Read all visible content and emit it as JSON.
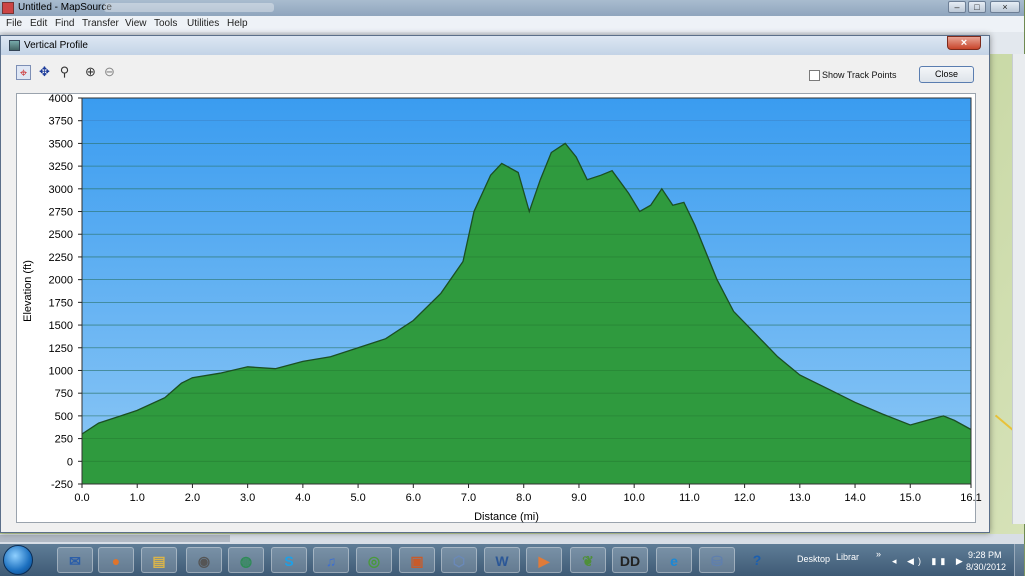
{
  "app": {
    "title": "Untitled - MapSource",
    "menu": [
      "File",
      "Edit",
      "Find",
      "Transfer",
      "View",
      "Tools",
      "Utilities",
      "Help"
    ],
    "window_buttons": [
      "–",
      "□",
      "×"
    ]
  },
  "dialog": {
    "title": "Vertical Profile",
    "close_x": "×",
    "show_track_points_label": "Show Track Points",
    "show_track_points_checked": false,
    "close_button": "Close",
    "tools": [
      {
        "name": "select-icon",
        "glyph": "⌖"
      },
      {
        "name": "pan-icon",
        "glyph": "✥"
      },
      {
        "name": "zoom-icon",
        "glyph": "⚲"
      },
      {
        "name": "zoom-in-icon",
        "glyph": "⊕"
      },
      {
        "name": "zoom-out-icon",
        "glyph": "⊖"
      }
    ]
  },
  "chart_data": {
    "type": "area",
    "xlabel": "Distance   (mi)",
    "ylabel": "Elevation (ft)",
    "xlim": [
      0,
      16.1
    ],
    "ylim": [
      -250,
      4000
    ],
    "x_ticks": [
      "0.0",
      "1.0",
      "2.0",
      "3.0",
      "4.0",
      "5.0",
      "6.0",
      "7.0",
      "8.0",
      "9.0",
      "10.0",
      "11.0",
      "12.0",
      "13.0",
      "14.0",
      "15.0",
      "16.1"
    ],
    "y_ticks": [
      "4000",
      "3750",
      "3500",
      "3250",
      "3000",
      "2750",
      "2500",
      "2250",
      "2000",
      "1750",
      "1500",
      "1250",
      "1000",
      "750",
      "500",
      "250",
      "0",
      "-250"
    ],
    "grid": true,
    "colors": {
      "sky": "#49a7f0",
      "fill": "#2f9a3e",
      "line": "#1b4f22"
    },
    "series": [
      {
        "x": [
          0,
          0.3,
          0.7,
          1.0,
          1.5,
          1.8,
          2.0,
          2.5,
          3.0,
          3.5,
          4.0,
          4.5,
          5.0,
          5.5,
          6.0,
          6.5,
          6.9,
          7.1,
          7.4,
          7.6,
          7.9,
          8.1,
          8.3,
          8.5,
          8.75,
          8.95,
          9.15,
          9.4,
          9.6,
          9.9,
          10.1,
          10.3,
          10.5,
          10.7,
          10.9,
          11.1,
          11.5,
          11.8,
          12.2,
          12.6,
          13.0,
          13.5,
          14.0,
          14.5,
          15.0,
          15.3,
          15.6,
          15.8,
          16.1
        ],
        "y": [
          300,
          420,
          500,
          560,
          700,
          860,
          920,
          970,
          1040,
          1020,
          1100,
          1150,
          1250,
          1350,
          1550,
          1850,
          2200,
          2750,
          3150,
          3280,
          3180,
          2750,
          3100,
          3400,
          3500,
          3350,
          3100,
          3150,
          3200,
          2950,
          2750,
          2820,
          3000,
          2820,
          2850,
          2600,
          2000,
          1650,
          1400,
          1150,
          950,
          800,
          650,
          520,
          400,
          450,
          500,
          450,
          350
        ]
      }
    ]
  },
  "taskbar": {
    "apps": [
      {
        "name": "thunderbird-icon",
        "label": "✉",
        "color": "#2c5ea8"
      },
      {
        "name": "firefox-icon",
        "label": "●",
        "color": "#e0742b"
      },
      {
        "name": "explorer-icon",
        "label": "▤",
        "color": "#d9b44a"
      },
      {
        "name": "camera-icon",
        "label": "◉",
        "color": "#555"
      },
      {
        "name": "browser-globe-icon",
        "label": "◍",
        "color": "#2e8b57"
      },
      {
        "name": "skype-icon",
        "label": "S",
        "color": "#1ea0e6"
      },
      {
        "name": "itunes-icon",
        "label": "♫",
        "color": "#3d6fd1"
      },
      {
        "name": "chrome-icon",
        "label": "◎",
        "color": "#4a9a3a"
      },
      {
        "name": "media-icon",
        "label": "▣",
        "color": "#c85b2a"
      },
      {
        "name": "mapsource-icon",
        "label": "⬡",
        "color": "#6a89b8"
      },
      {
        "name": "word-icon",
        "label": "W",
        "color": "#2b5797"
      },
      {
        "name": "video-icon",
        "label": "▶",
        "color": "#e07b39"
      },
      {
        "name": "evernote-icon",
        "label": "❦",
        "color": "#4f8f3a"
      },
      {
        "name": "dolby-icon",
        "label": "DD",
        "color": "#222"
      },
      {
        "name": "ie-icon",
        "label": "e",
        "color": "#1a88d6"
      },
      {
        "name": "network-icon",
        "label": "⛁",
        "color": "#5f7fae"
      },
      {
        "name": "help-icon",
        "label": "?",
        "color": "#1b5fb0"
      }
    ],
    "desktop_label": "Desktop",
    "library_label": "Librar",
    "chevron": "»",
    "tray": "◂ ◀) ▮▮ ▶",
    "time": "9:28 PM",
    "date": "8/30/2012"
  }
}
